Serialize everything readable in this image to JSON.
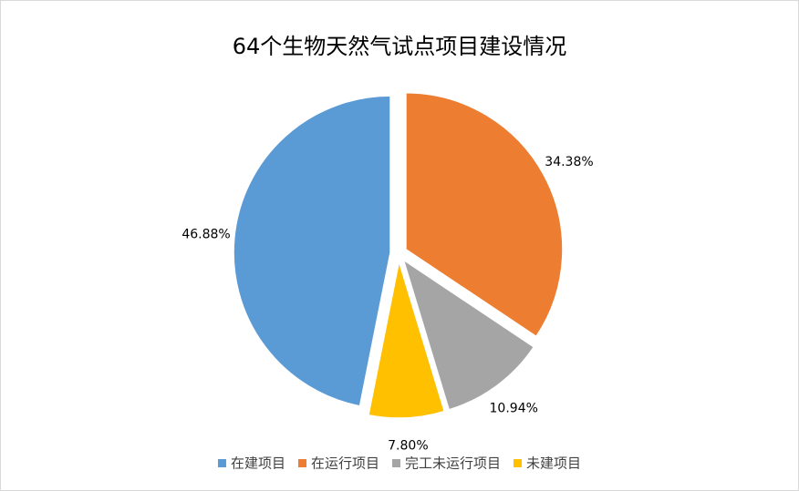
{
  "chart_data": {
    "type": "pie",
    "title": "64个生物天然气试点项目建设情况",
    "categories": [
      "在建项目",
      "在运行项目",
      "完工未运行项目",
      "未建项目"
    ],
    "values": [
      46.88,
      34.38,
      10.94,
      7.8
    ],
    "value_labels": [
      "46.88%",
      "34.38%",
      "10.94%",
      "7.80%"
    ],
    "colors": [
      "#5b9bd5",
      "#ed7d31",
      "#a5a5a5",
      "#ffc000"
    ],
    "legend": "bottom"
  }
}
